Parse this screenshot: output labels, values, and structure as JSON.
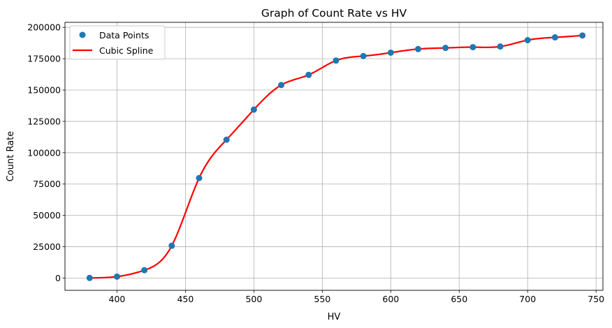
{
  "chart_data": {
    "type": "scatter",
    "title": "Graph of Count Rate vs HV",
    "xlabel": "HV",
    "ylabel": "Count Rate",
    "xlim": [
      362,
      755
    ],
    "ylim": [
      -9750,
      204000
    ],
    "xticks": [
      400,
      450,
      500,
      550,
      600,
      650,
      700,
      750
    ],
    "yticks": [
      0,
      25000,
      50000,
      75000,
      100000,
      125000,
      150000,
      175000,
      200000
    ],
    "grid": true,
    "legend_position": "top-left",
    "series": [
      {
        "name": "Data Points",
        "kind": "scatter",
        "color": "#1f77b4",
        "x": [
          380,
          400,
          420,
          440,
          460,
          480,
          500,
          520,
          540,
          560,
          580,
          600,
          620,
          640,
          660,
          680,
          700,
          720,
          740
        ],
        "y": [
          100,
          1200,
          6300,
          25800,
          79800,
          110400,
          134400,
          154000,
          162100,
          173500,
          177100,
          179800,
          182700,
          183600,
          184200,
          184700,
          189800,
          192000,
          193500
        ]
      },
      {
        "name": "Cubic Spline",
        "kind": "line",
        "color": "#ff0000"
      }
    ]
  }
}
